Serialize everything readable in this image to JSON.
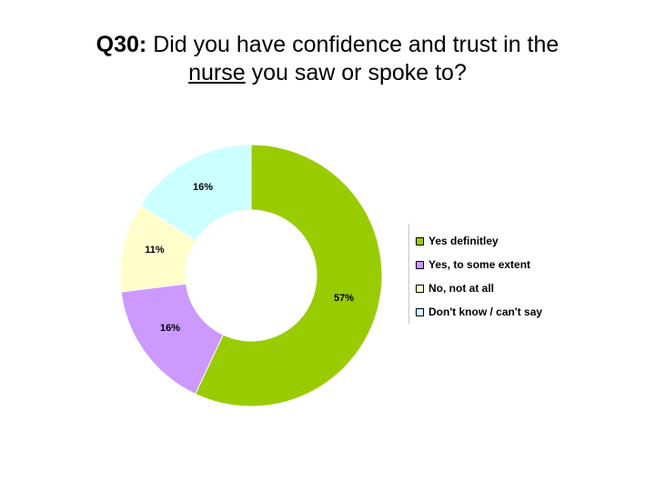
{
  "title": {
    "prefix": "Q30:",
    "line1_rest": " Did you have confidence and trust in the",
    "underlined": "nurse",
    "line2_rest": " you saw or spoke to?"
  },
  "chart_data": {
    "type": "pie",
    "variant": "donut",
    "slices": [
      {
        "name": "Yes definitley",
        "value": 57,
        "label": "57%",
        "color": "#99cc00"
      },
      {
        "name": "Yes, to some extent",
        "value": 16,
        "label": "16%",
        "color": "#cc99ff"
      },
      {
        "name": "No, not at all",
        "value": 11,
        "label": "11%",
        "color": "#ffffcc"
      },
      {
        "name": "Don't know / can't say",
        "value": 16,
        "label": "16%",
        "color": "#ccffff"
      }
    ],
    "legend_position": "right"
  }
}
